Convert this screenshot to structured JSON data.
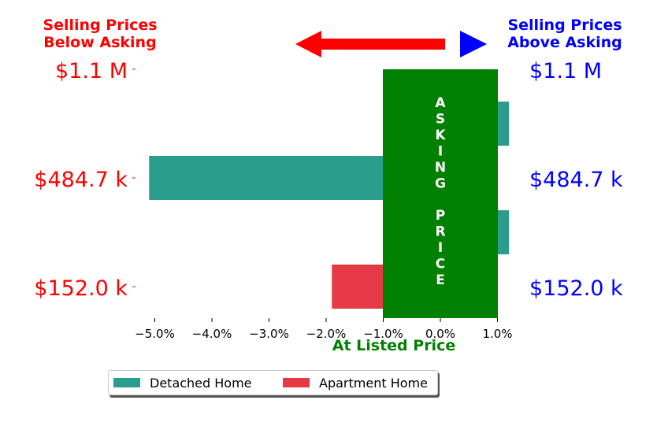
{
  "header": {
    "left_title_line1": "Selling Prices",
    "left_title_line2": "Below Asking",
    "right_title_line1": "Selling Prices",
    "right_title_line2": "Above Asking",
    "left_color": "#ff0000",
    "right_color": "#0000ff"
  },
  "price_labels": {
    "left": [
      "$1.1 M",
      "$484.7 k",
      "$152.0 k"
    ],
    "right": [
      "$1.1 M",
      "$484.7 k",
      "$152.0 k"
    ]
  },
  "asking_box": {
    "text_top": "ASKING",
    "text_bottom": "PRICE",
    "color": "#008000"
  },
  "center_label": "At Listed Price",
  "chart_data": {
    "type": "bar",
    "orientation": "horizontal",
    "categories": [
      "$1.1 M",
      "$484.7 k",
      "$152.0 k"
    ],
    "series": [
      {
        "name": "Detached Home",
        "color": "#2a9d8f",
        "values": [
          1.2,
          -5.1,
          1.2
        ]
      },
      {
        "name": "Apartment Home",
        "color": "#e63946",
        "values": [
          null,
          null,
          -1.9
        ]
      }
    ],
    "x_ticks": [
      "−5.0%",
      "−4.0%",
      "−3.0%",
      "−2.0%",
      "−1.0%",
      "0.0%",
      "1.0%"
    ],
    "x_tick_values": [
      -5,
      -4,
      -3,
      -2,
      -1,
      0,
      1
    ],
    "xlim": [
      -5.5,
      1.0
    ],
    "asking_band": [
      -1.0,
      1.0
    ],
    "legend_position": "bottom"
  }
}
